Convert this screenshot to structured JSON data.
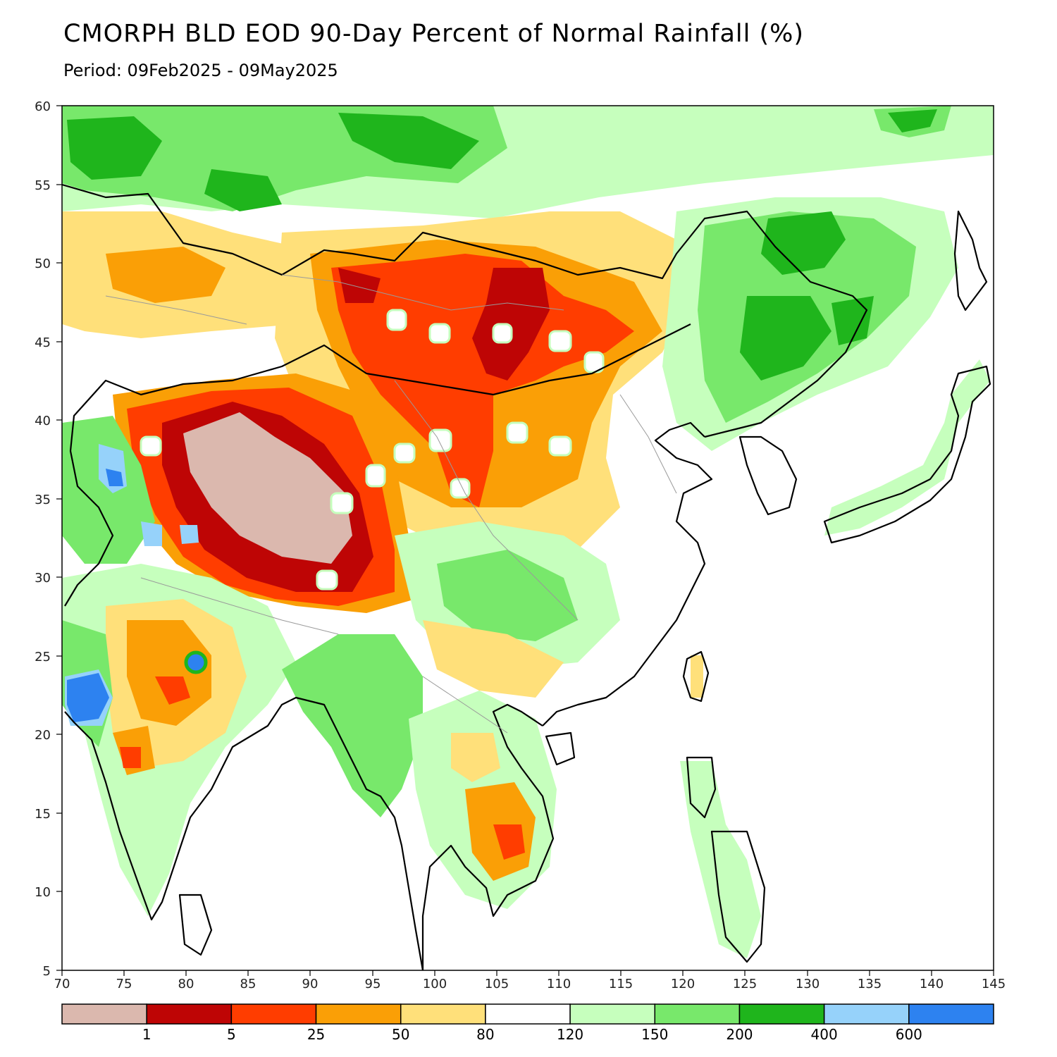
{
  "title": "CMORPH BLD EOD 90-Day Percent of Normal Rainfall (%)",
  "subtitle": "Period: 09Feb2025 - 09May2025",
  "axes": {
    "lon_ticks": [
      "70",
      "75",
      "80",
      "85",
      "90",
      "95",
      "100",
      "105",
      "110",
      "115",
      "120",
      "125",
      "130",
      "135",
      "140",
      "145"
    ],
    "lat_ticks": [
      "60",
      "55",
      "50",
      "45",
      "40",
      "35",
      "30",
      "25",
      "20",
      "15",
      "10",
      "5"
    ]
  },
  "colorbar": {
    "colors": [
      "#dbb8ae",
      "#be0505",
      "#ff3d00",
      "#fa9f06",
      "#ffe07a",
      "#ffffff",
      "#c6ffbd",
      "#78e86b",
      "#1fb51c",
      "#96d2fa",
      "#2d82f0"
    ],
    "labels": [
      "1",
      "5",
      "25",
      "50",
      "80",
      "120",
      "150",
      "200",
      "400",
      "600"
    ]
  },
  "colors": {
    "land_neutral": "#ffffff",
    "border": "#000000",
    "inner_border": "#9a9a9a"
  }
}
